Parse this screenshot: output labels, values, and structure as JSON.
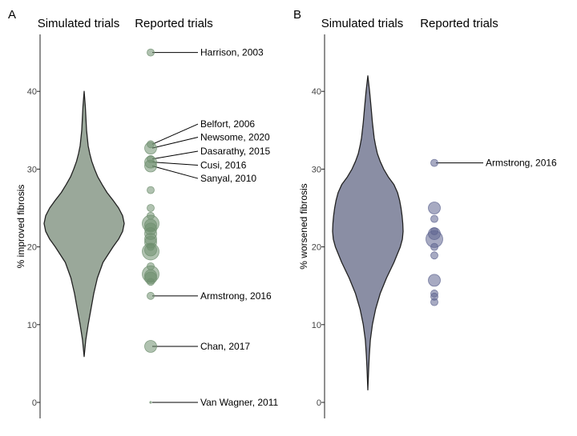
{
  "chart_data": [
    {
      "type": "violin",
      "panel_label": "A",
      "column_titles": [
        "Simulated trials",
        "Reported trials"
      ],
      "ylabel": "% improved fibrosis",
      "ylim": [
        -2,
        48
      ],
      "yticks": [
        0,
        10,
        20,
        30,
        40
      ],
      "colors": {
        "violin_fill": "#9aa89a",
        "violin_stroke": "#222222",
        "point_fill": "#6f8f6f"
      },
      "violin": {
        "profile": [
          [
            5.9,
            0
          ],
          [
            8,
            0.04
          ],
          [
            10,
            0.1
          ],
          [
            12,
            0.17
          ],
          [
            14,
            0.24
          ],
          [
            16,
            0.33
          ],
          [
            18,
            0.47
          ],
          [
            20,
            0.72
          ],
          [
            21,
            0.86
          ],
          [
            22,
            0.96
          ],
          [
            23,
            1.0
          ],
          [
            24,
            0.96
          ],
          [
            25,
            0.86
          ],
          [
            26,
            0.72
          ],
          [
            27,
            0.57
          ],
          [
            28,
            0.45
          ],
          [
            29,
            0.34
          ],
          [
            30,
            0.26
          ],
          [
            31,
            0.19
          ],
          [
            32,
            0.14
          ],
          [
            33,
            0.1
          ],
          [
            34,
            0.08
          ],
          [
            35,
            0.06
          ],
          [
            36,
            0.05
          ],
          [
            38,
            0.03
          ],
          [
            40,
            0
          ]
        ]
      },
      "points": [
        {
          "y": 45.0,
          "size": 1
        },
        {
          "y": 33.2,
          "size": 1
        },
        {
          "y": 32.7,
          "size": 2
        },
        {
          "y": 31.3,
          "size": 1
        },
        {
          "y": 30.9,
          "size": 2
        },
        {
          "y": 30.4,
          "size": 2
        },
        {
          "y": 27.3,
          "size": 1
        },
        {
          "y": 25.0,
          "size": 1
        },
        {
          "y": 24.0,
          "size": 1
        },
        {
          "y": 23.0,
          "size": 3
        },
        {
          "y": 22.8,
          "size": 2
        },
        {
          "y": 22.3,
          "size": 2
        },
        {
          "y": 21.7,
          "size": 2
        },
        {
          "y": 21.0,
          "size": 2
        },
        {
          "y": 20.6,
          "size": 2
        },
        {
          "y": 20.0,
          "size": 1
        },
        {
          "y": 19.6,
          "size": 2
        },
        {
          "y": 19.4,
          "size": 3
        },
        {
          "y": 17.5,
          "size": 1
        },
        {
          "y": 16.5,
          "size": 3
        },
        {
          "y": 16.3,
          "size": 2
        },
        {
          "y": 16.0,
          "size": 2
        },
        {
          "y": 15.5,
          "size": 1
        },
        {
          "y": 13.7,
          "size": 1
        },
        {
          "y": 7.2,
          "size": 2
        },
        {
          "y": 0.0,
          "size": 0.3
        }
      ],
      "annotations": [
        {
          "label": "Harrison, 2003",
          "y": 45.0,
          "label_y": 45.0
        },
        {
          "label": "Belfort, 2006",
          "y": 33.2,
          "label_y": 35.8
        },
        {
          "label": "Newsome, 2020",
          "y": 32.7,
          "label_y": 34.1
        },
        {
          "label": "Dasarathy, 2015",
          "y": 31.3,
          "label_y": 32.3
        },
        {
          "label": "Cusi, 2016",
          "y": 30.9,
          "label_y": 30.5
        },
        {
          "label": "Sanyal, 2010",
          "y": 30.4,
          "label_y": 28.8
        },
        {
          "label": "Armstrong, 2016",
          "y": 13.7,
          "label_y": 13.7
        },
        {
          "label": "Chan, 2017",
          "y": 7.2,
          "label_y": 7.2
        },
        {
          "label": "Van Wagner, 2011",
          "y": 0.0,
          "label_y": 0.0
        }
      ]
    },
    {
      "type": "violin",
      "panel_label": "B",
      "column_titles": [
        "Simulated trials",
        "Reported trials"
      ],
      "ylabel": "% worsened fibrosis",
      "ylim": [
        -2,
        48
      ],
      "yticks": [
        0,
        10,
        20,
        30,
        40
      ],
      "colors": {
        "violin_fill": "#8a8ea4",
        "violin_stroke": "#222222",
        "point_fill": "#5e6490"
      },
      "violin": {
        "profile": [
          [
            1.6,
            0
          ],
          [
            4,
            0.02
          ],
          [
            6,
            0.04
          ],
          [
            8,
            0.07
          ],
          [
            10,
            0.13
          ],
          [
            12,
            0.22
          ],
          [
            14,
            0.35
          ],
          [
            16,
            0.53
          ],
          [
            18,
            0.74
          ],
          [
            20,
            0.92
          ],
          [
            21,
            0.98
          ],
          [
            22,
            1.0
          ],
          [
            23,
            0.99
          ],
          [
            24,
            0.97
          ],
          [
            25,
            0.94
          ],
          [
            26,
            0.9
          ],
          [
            27,
            0.84
          ],
          [
            28,
            0.74
          ],
          [
            29,
            0.58
          ],
          [
            30,
            0.45
          ],
          [
            31,
            0.35
          ],
          [
            32,
            0.27
          ],
          [
            33,
            0.22
          ],
          [
            34,
            0.18
          ],
          [
            36,
            0.13
          ],
          [
            38,
            0.09
          ],
          [
            40,
            0.05
          ],
          [
            42,
            0
          ]
        ]
      },
      "points": [
        {
          "y": 30.8,
          "size": 1
        },
        {
          "y": 25.0,
          "size": 2
        },
        {
          "y": 23.6,
          "size": 1
        },
        {
          "y": 22.0,
          "size": 1
        },
        {
          "y": 21.7,
          "size": 2
        },
        {
          "y": 21.0,
          "size": 3
        },
        {
          "y": 20.0,
          "size": 1
        },
        {
          "y": 18.9,
          "size": 1
        },
        {
          "y": 15.7,
          "size": 2
        },
        {
          "y": 14.0,
          "size": 1
        },
        {
          "y": 13.6,
          "size": 1
        },
        {
          "y": 12.9,
          "size": 1
        }
      ],
      "annotations": [
        {
          "label": "Armstrong, 2016",
          "y": 30.8,
          "label_y": 30.8
        }
      ]
    }
  ]
}
